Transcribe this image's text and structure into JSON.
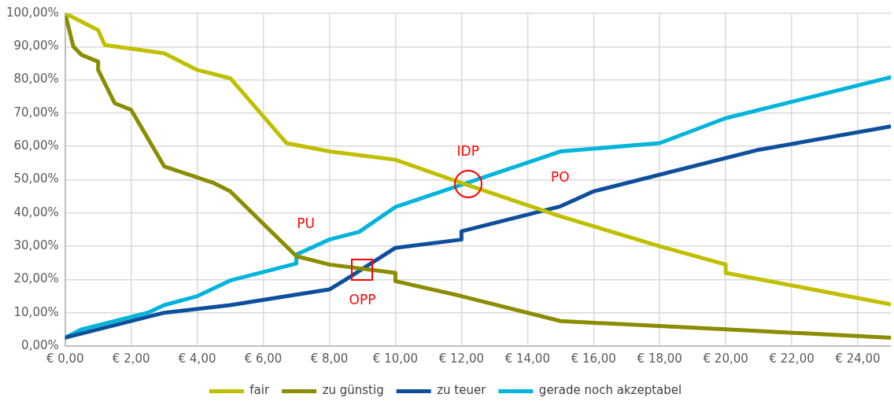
{
  "chart_data": {
    "type": "line",
    "xlim": [
      0,
      25
    ],
    "xticks": [
      {
        "value": 0,
        "label": "€ 0,00"
      },
      {
        "value": 2,
        "label": "€ 2,00"
      },
      {
        "value": 4,
        "label": "€ 4,00"
      },
      {
        "value": 6,
        "label": "€ 6,00"
      },
      {
        "value": 8,
        "label": "€ 8,00"
      },
      {
        "value": 10,
        "label": "€ 10,00"
      },
      {
        "value": 12,
        "label": "€ 12,00"
      },
      {
        "value": 14,
        "label": "€ 14,00"
      },
      {
        "value": 16,
        "label": "€ 16,00"
      },
      {
        "value": 18,
        "label": "€ 18,00"
      },
      {
        "value": 20,
        "label": "€ 20,00"
      },
      {
        "value": 22,
        "label": "€ 22,00"
      },
      {
        "value": 24,
        "label": "€ 24,00"
      }
    ],
    "ylim": [
      0,
      100
    ],
    "yticks": [
      {
        "value": 0,
        "label": "0,00%"
      },
      {
        "value": 10,
        "label": "10,00%"
      },
      {
        "value": 20,
        "label": "20,00%"
      },
      {
        "value": 30,
        "label": "30,00%"
      },
      {
        "value": 40,
        "label": "40,00%"
      },
      {
        "value": 50,
        "label": "50,00%"
      },
      {
        "value": 60,
        "label": "60,00%"
      },
      {
        "value": 70,
        "label": "70,00%"
      },
      {
        "value": 80,
        "label": "80,00%"
      },
      {
        "value": 90,
        "label": "90,00%"
      },
      {
        "value": 100,
        "label": "100,00%"
      }
    ],
    "grid": true,
    "legend": "bottom",
    "marker": "none",
    "line_style": "solid",
    "series": [
      {
        "name": "fair",
        "color": "#bfbf00",
        "x": [
          0,
          1,
          1.2,
          3,
          4,
          5,
          6.7,
          8,
          10,
          12,
          15,
          18,
          20,
          20,
          25
        ],
        "values": [
          100,
          95,
          90.5,
          88,
          83,
          80.5,
          61,
          58.5,
          56,
          49,
          39,
          30,
          24.5,
          22,
          12.5
        ]
      },
      {
        "name": "zu günstig",
        "color": "#8c8c00",
        "x": [
          0,
          0.25,
          0.5,
          1,
          1,
          1.5,
          2,
          3,
          4.5,
          5,
          7,
          8,
          10,
          10,
          12,
          15,
          20,
          25
        ],
        "values": [
          100,
          90,
          87.5,
          85.5,
          83,
          73,
          71,
          54,
          49,
          46.5,
          27,
          24.5,
          22,
          19.5,
          15,
          7.5,
          5,
          2.5
        ]
      },
      {
        "name": "zu teuer",
        "color": "#0e4f9c",
        "x": [
          0,
          3,
          5,
          8,
          8.5,
          10,
          12,
          12,
          15,
          16,
          21,
          25
        ],
        "values": [
          2.5,
          10,
          12.3,
          17,
          20,
          29.5,
          32,
          34.5,
          42,
          46.5,
          59,
          66
        ]
      },
      {
        "name": "gerade noch akzeptabel",
        "color": "#00b4dc",
        "x": [
          0,
          0.5,
          2.5,
          3,
          4,
          5,
          7,
          7,
          8,
          8.9,
          10,
          15,
          18,
          20,
          25
        ],
        "values": [
          2.5,
          5,
          10,
          12.3,
          15,
          19.7,
          24.8,
          27.5,
          32,
          34.3,
          41.8,
          58.5,
          61,
          68.5,
          80.8
        ]
      }
    ],
    "annotations": [
      {
        "text": "PU",
        "x": 7,
        "y": 27
      },
      {
        "text": "OPP",
        "x": 9,
        "y": 23
      },
      {
        "text": "IDP",
        "x": 12.2,
        "y": 48.8
      },
      {
        "text": "PO",
        "x": 14.7,
        "y": 41
      }
    ]
  }
}
